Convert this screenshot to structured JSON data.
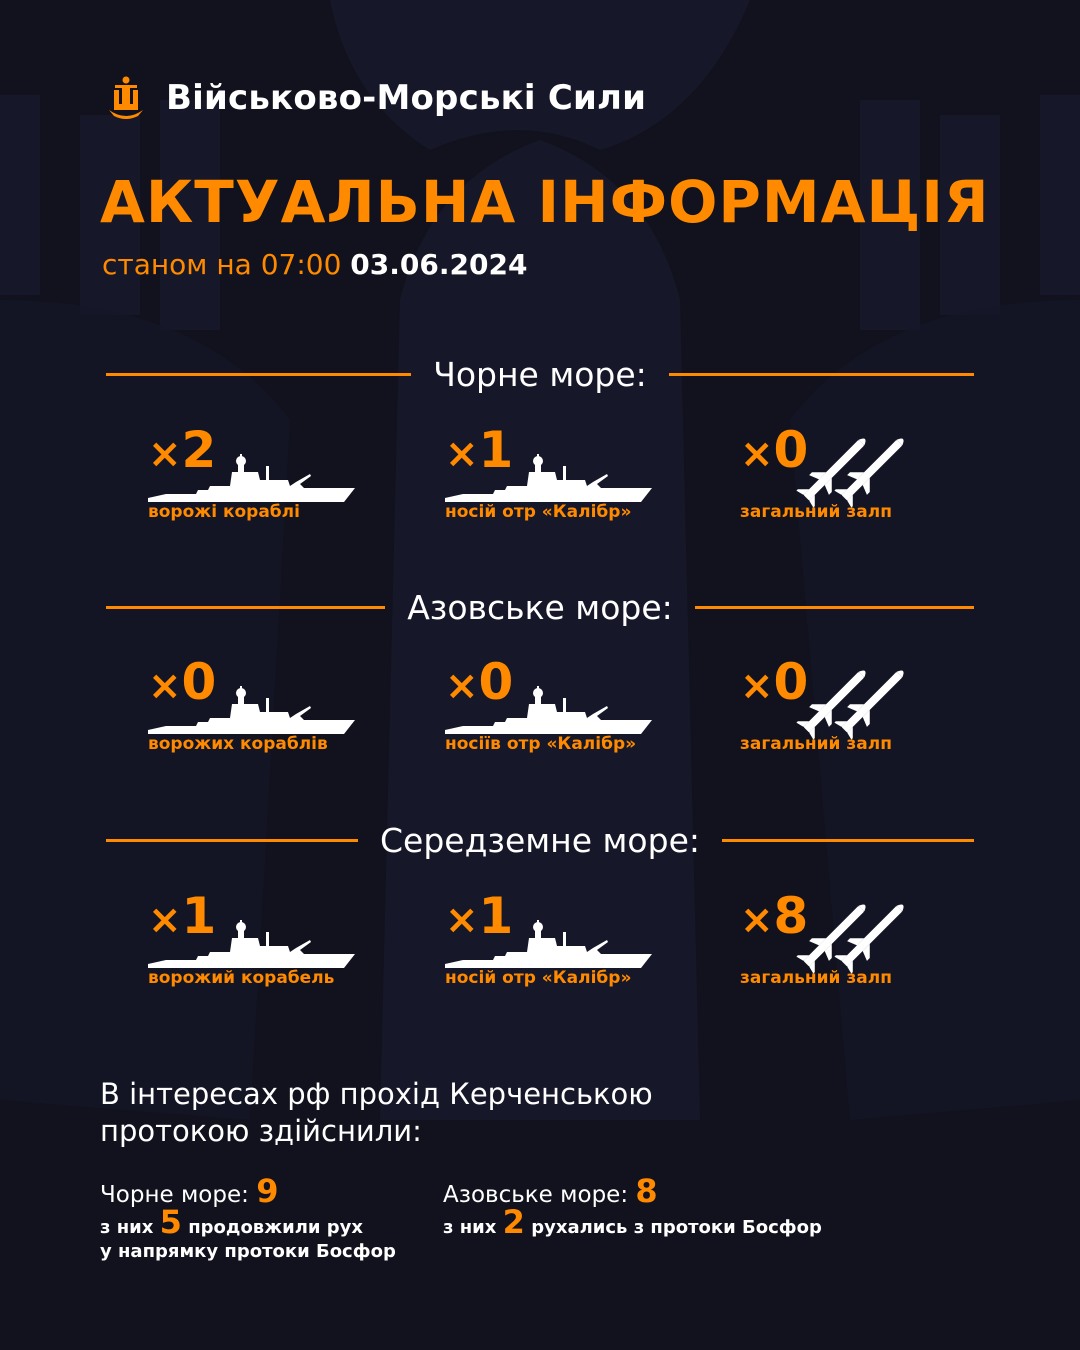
{
  "brand": {
    "name": "Військово-Морські Сили",
    "logo_icon": "trident-anchor-icon"
  },
  "header": {
    "title": "АКТУАЛЬНА ІНФОРМАЦІЯ",
    "subtitle_prefix": "станом на 07:00",
    "date": "03.06.2024"
  },
  "colors": {
    "accent": "#ff8a00",
    "background": "#11121e",
    "text": "#ffffff"
  },
  "sections": [
    {
      "title": "Чорне море:",
      "items": [
        {
          "count": "2",
          "label": "ворожі кораблі",
          "icon": "warship-icon"
        },
        {
          "count": "1",
          "label": "носій отр «Калібр»",
          "icon": "warship-icon"
        },
        {
          "count": "0",
          "label": "загальний залп",
          "icon": "missiles-icon"
        }
      ]
    },
    {
      "title": "Азовське море:",
      "items": [
        {
          "count": "0",
          "label": "ворожих кораблів",
          "icon": "warship-icon"
        },
        {
          "count": "0",
          "label": "носіїв отр «Калібр»",
          "icon": "warship-icon"
        },
        {
          "count": "0",
          "label": "загальний залп",
          "icon": "missiles-icon"
        }
      ]
    },
    {
      "title": "Середземне море:",
      "items": [
        {
          "count": "1",
          "label": "ворожий корабель",
          "icon": "warship-icon"
        },
        {
          "count": "1",
          "label": "носій отр «Калібр»",
          "icon": "warship-icon"
        },
        {
          "count": "8",
          "label": "загальний залп",
          "icon": "missiles-icon"
        }
      ]
    }
  ],
  "multiplier": "×",
  "kerch": {
    "line1": "В інтересах рф прохід Керченською",
    "line2": "протокою здійснили:",
    "black_sea": {
      "label": "Чорне море:",
      "value": "9",
      "sub_prefix": "з них",
      "sub_value": "5",
      "sub_suffix": "продовжили рух",
      "sub_line2": "у напрямку протоки Босфор"
    },
    "azov_sea": {
      "label": "Азовське море:",
      "value": "8",
      "sub_prefix": "з них",
      "sub_value": "2",
      "sub_suffix": "рухались з протоки Босфор"
    }
  }
}
